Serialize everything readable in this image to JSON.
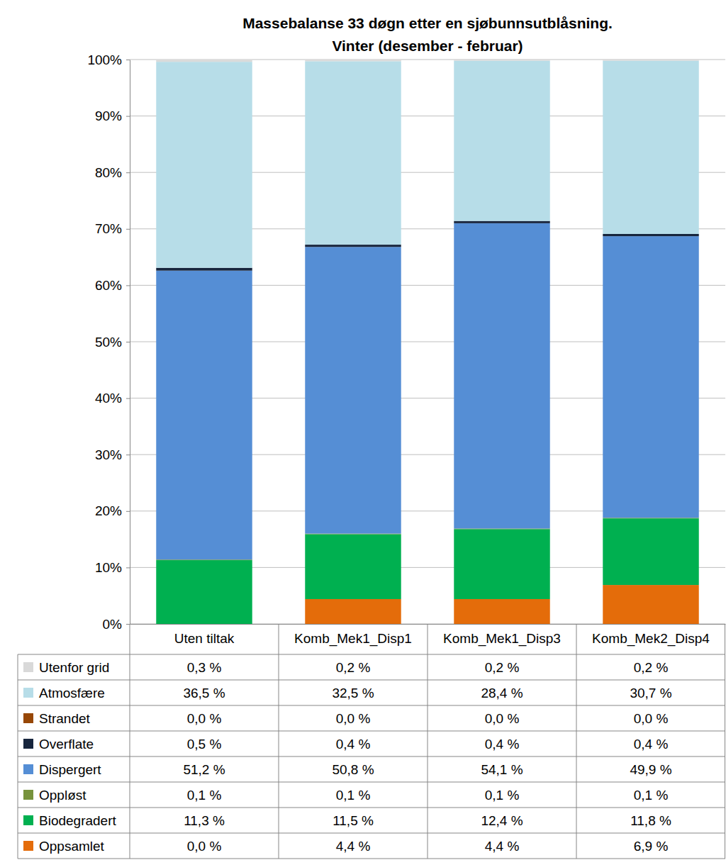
{
  "chart_data": {
    "type": "bar",
    "title": "Massebalanse 33 døgn etter en sjøbunnsutblåsning.",
    "subtitle": "Vinter (desember - februar)",
    "categories": [
      "Uten tiltak",
      "Komb_Mek1_Disp1",
      "Komb_Mek1_Disp3",
      "Komb_Mek2_Disp4"
    ],
    "stacked": true,
    "grid": true,
    "ylim": [
      0,
      100
    ],
    "yticks": [
      {
        "value": 0,
        "label": "0%"
      },
      {
        "value": 10,
        "label": "10%"
      },
      {
        "value": 20,
        "label": "20%"
      },
      {
        "value": 30,
        "label": "30%"
      },
      {
        "value": 40,
        "label": "40%"
      },
      {
        "value": 50,
        "label": "50%"
      },
      {
        "value": 60,
        "label": "60%"
      },
      {
        "value": 70,
        "label": "70%"
      },
      {
        "value": 80,
        "label": "80%"
      },
      {
        "value": 90,
        "label": "90%"
      },
      {
        "value": 100,
        "label": "100%"
      }
    ],
    "series": [
      {
        "name": "Utenfor grid",
        "color": "#d9d9d9",
        "values": [
          0.3,
          0.2,
          0.2,
          0.2
        ],
        "value_labels": [
          "0,3 %",
          "0,2 %",
          "0,2 %",
          "0,2 %"
        ]
      },
      {
        "name": "Atmosfære",
        "color": "#b7dde8",
        "values": [
          36.5,
          32.5,
          28.4,
          30.7
        ],
        "value_labels": [
          "36,5 %",
          "32,5 %",
          "28,4 %",
          "30,7 %"
        ]
      },
      {
        "name": "Strandet",
        "color": "#974706",
        "values": [
          0,
          0,
          0,
          0
        ],
        "value_labels": [
          "0,0 %",
          "0,0 %",
          "0,0 %",
          "0,0 %"
        ]
      },
      {
        "name": "Overflate",
        "color": "#17253d",
        "values": [
          0.5,
          0.4,
          0.4,
          0.4
        ],
        "value_labels": [
          "0,5 %",
          "0,4 %",
          "0,4 %",
          "0,4 %"
        ]
      },
      {
        "name": "Dispergert",
        "color": "#558ed5",
        "values": [
          51.2,
          50.8,
          54.1,
          49.9
        ],
        "value_labels": [
          "51,2 %",
          "50,8 %",
          "54,1 %",
          "49,9 %"
        ]
      },
      {
        "name": "Oppløst",
        "color": "#77933c",
        "values": [
          0.1,
          0.1,
          0.1,
          0.1
        ],
        "value_labels": [
          "0,1 %",
          "0,1 %",
          "0,1 %",
          "0,1 %"
        ]
      },
      {
        "name": "Biodegradert",
        "color": "#00b050",
        "values": [
          11.3,
          11.5,
          12.4,
          11.8
        ],
        "value_labels": [
          "11,3 %",
          "11,5 %",
          "12,4 %",
          "11,8 %"
        ]
      },
      {
        "name": "Oppsamlet",
        "color": "#e46c0a",
        "values": [
          0,
          4.4,
          4.4,
          6.9
        ],
        "value_labels": [
          "0,0 %",
          "4,4 %",
          "4,4 %",
          "6,9 %"
        ]
      }
    ]
  }
}
